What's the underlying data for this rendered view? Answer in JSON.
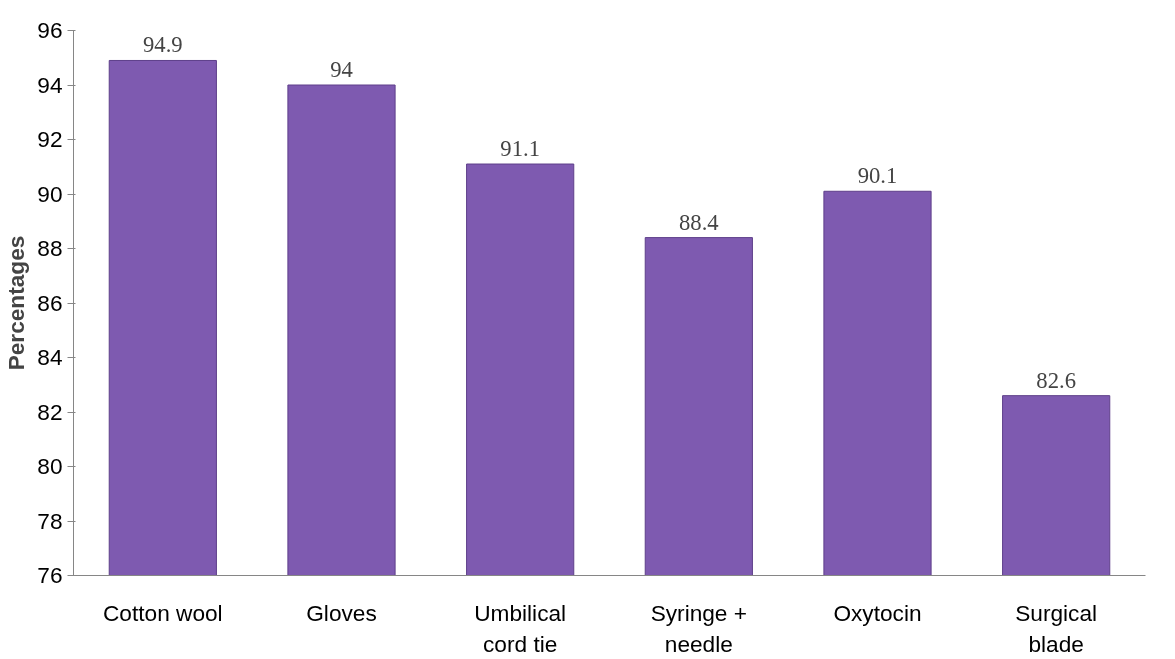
{
  "chart_data": {
    "type": "bar",
    "ylabel": "Percentages",
    "categories": [
      "Cotton wool",
      "Gloves",
      "Umbilical cord tie",
      "Syringe + needle",
      "Oxytocin",
      "Surgical blade"
    ],
    "values": [
      94.9,
      94,
      91.1,
      88.4,
      90.1,
      82.6
    ],
    "color": "#7e5ab0",
    "ylim": [
      76,
      96
    ],
    "yticks": [
      76,
      78,
      80,
      82,
      84,
      86,
      88,
      90,
      92,
      94,
      96
    ],
    "grid": false,
    "data_labels": true
  }
}
